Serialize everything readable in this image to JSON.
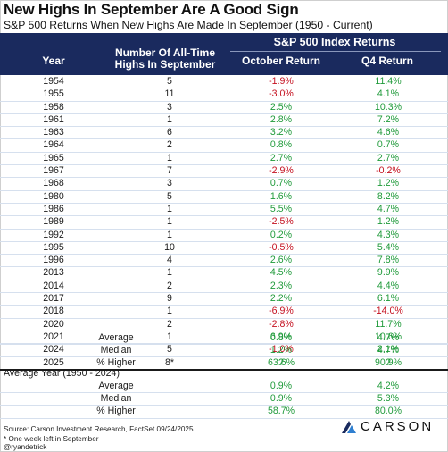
{
  "title": "New Highs In September Are A Good Sign",
  "subtitle": "S&P 500 Returns When New Highs Are Made In September (1950 - Current)",
  "header": {
    "group": "S&P 500 Index Returns",
    "year": "Year",
    "num_line1": "Number Of All-Time",
    "num_line2": "Highs In September",
    "oct": "October Return",
    "q4": "Q4 Return",
    "bg_color": "#1a2a5e"
  },
  "colors": {
    "positive": "#1f9a3a",
    "negative": "#c4101f"
  },
  "rows": [
    {
      "year": "1954",
      "num": "5",
      "oct": "-1.9%",
      "q4": "11.4%"
    },
    {
      "year": "1955",
      "num": "11",
      "oct": "-3.0%",
      "q4": "4.1%"
    },
    {
      "year": "1958",
      "num": "3",
      "oct": "2.5%",
      "q4": "10.3%"
    },
    {
      "year": "1961",
      "num": "1",
      "oct": "2.8%",
      "q4": "7.2%"
    },
    {
      "year": "1963",
      "num": "6",
      "oct": "3.2%",
      "q4": "4.6%"
    },
    {
      "year": "1964",
      "num": "2",
      "oct": "0.8%",
      "q4": "0.7%"
    },
    {
      "year": "1965",
      "num": "1",
      "oct": "2.7%",
      "q4": "2.7%"
    },
    {
      "year": "1967",
      "num": "7",
      "oct": "-2.9%",
      "q4": "-0.2%"
    },
    {
      "year": "1968",
      "num": "3",
      "oct": "0.7%",
      "q4": "1.2%"
    },
    {
      "year": "1980",
      "num": "5",
      "oct": "1.6%",
      "q4": "8.2%"
    },
    {
      "year": "1986",
      "num": "1",
      "oct": "5.5%",
      "q4": "4.7%"
    },
    {
      "year": "1989",
      "num": "1",
      "oct": "-2.5%",
      "q4": "1.2%"
    },
    {
      "year": "1992",
      "num": "1",
      "oct": "0.2%",
      "q4": "4.3%"
    },
    {
      "year": "1995",
      "num": "10",
      "oct": "-0.5%",
      "q4": "5.4%"
    },
    {
      "year": "1996",
      "num": "4",
      "oct": "2.6%",
      "q4": "7.8%"
    },
    {
      "year": "2013",
      "num": "1",
      "oct": "4.5%",
      "q4": "9.9%"
    },
    {
      "year": "2014",
      "num": "2",
      "oct": "2.3%",
      "q4": "4.4%"
    },
    {
      "year": "2017",
      "num": "9",
      "oct": "2.2%",
      "q4": "6.1%"
    },
    {
      "year": "2018",
      "num": "1",
      "oct": "-6.9%",
      "q4": "-14.0%"
    },
    {
      "year": "2020",
      "num": "2",
      "oct": "-2.8%",
      "q4": "11.7%"
    },
    {
      "year": "2021",
      "num": "1",
      "oct": "6.9%",
      "q4": "10.6%"
    },
    {
      "year": "2024",
      "num": "5",
      "oct": "-1.0%",
      "q4": "2.1%"
    },
    {
      "year": "2025",
      "num": "8*",
      "oct": "?",
      "q4": "?"
    }
  ],
  "summary_1": [
    {
      "label": "Average",
      "oct": "0.8%",
      "q4": "4.7%"
    },
    {
      "label": "Median",
      "oct": "1.2%",
      "q4": "4.7%"
    },
    {
      "label": "% Higher",
      "oct": "63.6%",
      "q4": "90.9%"
    }
  ],
  "average_year_title": "Average Year (1950 - 2024)",
  "summary_2": [
    {
      "label": "Average",
      "oct": "0.9%",
      "q4": "4.2%"
    },
    {
      "label": "Median",
      "oct": "0.9%",
      "q4": "5.3%"
    },
    {
      "label": "% Higher",
      "oct": "58.7%",
      "q4": "80.0%"
    }
  ],
  "footer": {
    "source": "Source: Carson Investment Research, FactSet 09/24/2025",
    "note": "* One week left in September",
    "handle": "@ryandetrick"
  },
  "logo": {
    "text": "CARSON",
    "icon": "carson-logo-icon"
  }
}
